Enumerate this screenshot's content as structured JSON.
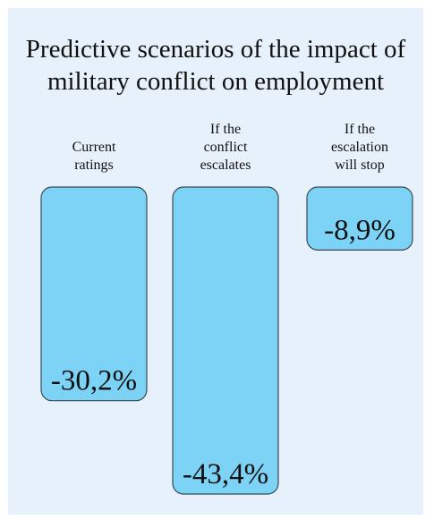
{
  "chart_data": {
    "type": "bar",
    "title_lines": [
      "Predictive scenarios of the impact of",
      "military conflict on employment"
    ],
    "categories": [
      [
        "Current",
        "ratings"
      ],
      [
        "If the",
        "conflict",
        "escalates"
      ],
      [
        "If the",
        "escalation",
        "will stop"
      ]
    ],
    "values": [
      -30.2,
      -43.4,
      -8.9
    ],
    "value_labels": [
      "-30,2%",
      "-43,4%",
      "-8,9%"
    ],
    "ylim": [
      -43.4,
      0
    ],
    "grid": false,
    "legend": "none",
    "bar_color": "#7dd3f5",
    "background_color": "#e7f1fb"
  }
}
